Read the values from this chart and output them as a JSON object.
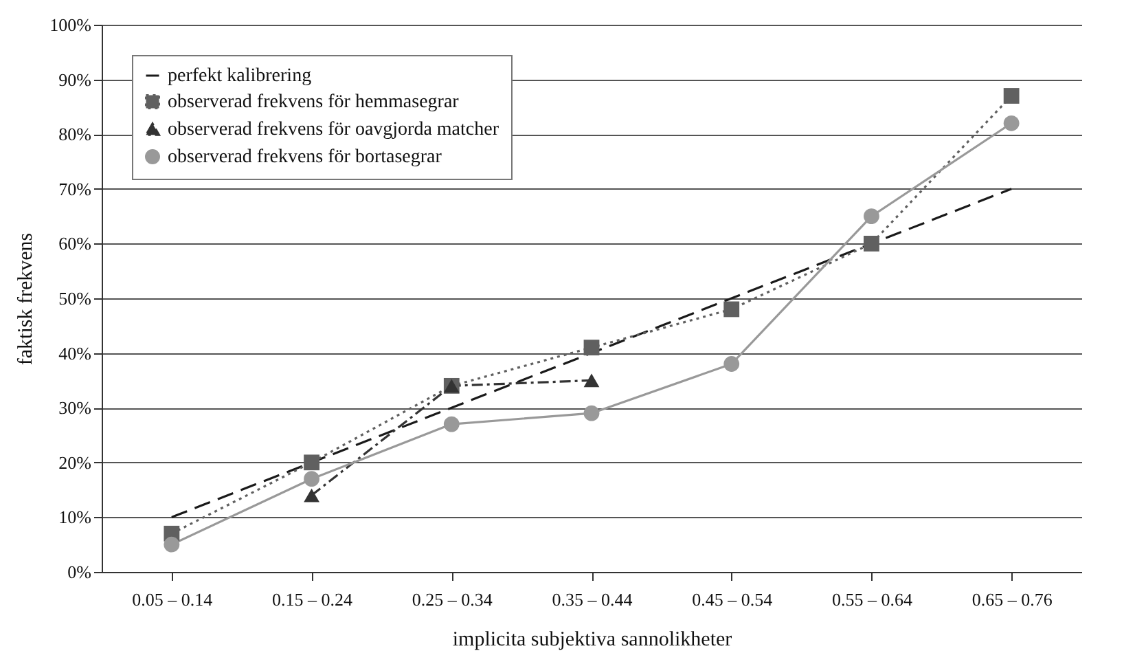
{
  "chart_data": {
    "type": "line",
    "xlabel": "implicita subjektiva sannolikheter",
    "ylabel": "faktisk frekvens",
    "categories": [
      "0.05 – 0.14",
      "0.15 – 0.24",
      "0.25 – 0.34",
      "0.35 – 0.44",
      "0.45 – 0.54",
      "0.55 – 0.64",
      "0.65 – 0.76"
    ],
    "series": [
      {
        "name": "perfekt kalibrering",
        "color": "#1a1a1a",
        "marker": "none",
        "line_style": "dashed",
        "values": [
          10,
          20,
          30,
          40,
          50,
          60,
          70
        ]
      },
      {
        "name": "observerad frekvens för hemmasegrar",
        "color": "#606060",
        "marker": "square",
        "line_style": "dotted",
        "values": [
          7,
          20,
          34,
          41,
          48,
          60,
          87
        ]
      },
      {
        "name": "observerad frekvens för oavgjorda matcher",
        "color": "#333333",
        "marker": "triangle",
        "line_style": "dashdot",
        "values": [
          null,
          14,
          34,
          35,
          null,
          null,
          null
        ]
      },
      {
        "name": "observerad frekvens för bortasegrar",
        "color": "#999999",
        "marker": "circle",
        "line_style": "solid",
        "values": [
          5,
          17,
          27,
          29,
          38,
          65,
          82
        ]
      }
    ],
    "ylim": [
      0,
      100
    ],
    "yticks": [
      {
        "value": 0,
        "label": "0%"
      },
      {
        "value": 10,
        "label": "10%"
      },
      {
        "value": 20,
        "label": "20%"
      },
      {
        "value": 30,
        "label": "30%"
      },
      {
        "value": 40,
        "label": "40%"
      },
      {
        "value": 50,
        "label": "50%"
      },
      {
        "value": 60,
        "label": "60%"
      },
      {
        "value": 70,
        "label": "70%"
      },
      {
        "value": 80,
        "label": "80%"
      },
      {
        "value": 90,
        "label": "90%"
      },
      {
        "value": 100,
        "label": "100%"
      }
    ],
    "grid": "y",
    "legend": "top left"
  }
}
